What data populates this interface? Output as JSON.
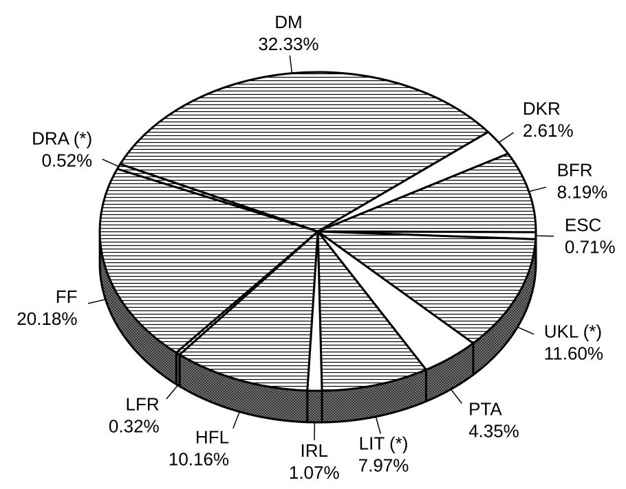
{
  "chart_data": {
    "type": "pie",
    "categories": [
      "DM",
      "DKR",
      "BFR",
      "ESC",
      "UKL (*)",
      "PTA",
      "LIT (*)",
      "IRL",
      "HFL",
      "LFR",
      "FF",
      "DRA (*)"
    ],
    "values": [
      32.33,
      2.61,
      8.19,
      0.71,
      11.6,
      4.35,
      7.97,
      1.07,
      10.16,
      0.32,
      20.18,
      0.52
    ],
    "value_labels": [
      "32.33%",
      "2.61%",
      "8.19%",
      "0.71%",
      "11.60%",
      "4.35%",
      "7.97%",
      "1.07%",
      "10.16%",
      "0.32%",
      "20.18%",
      "0.52%"
    ],
    "patterns": [
      "hatched",
      "white",
      "hatched",
      "white",
      "hatched",
      "white",
      "hatched",
      "white",
      "hatched",
      "hatched",
      "hatched",
      "hatched"
    ]
  }
}
